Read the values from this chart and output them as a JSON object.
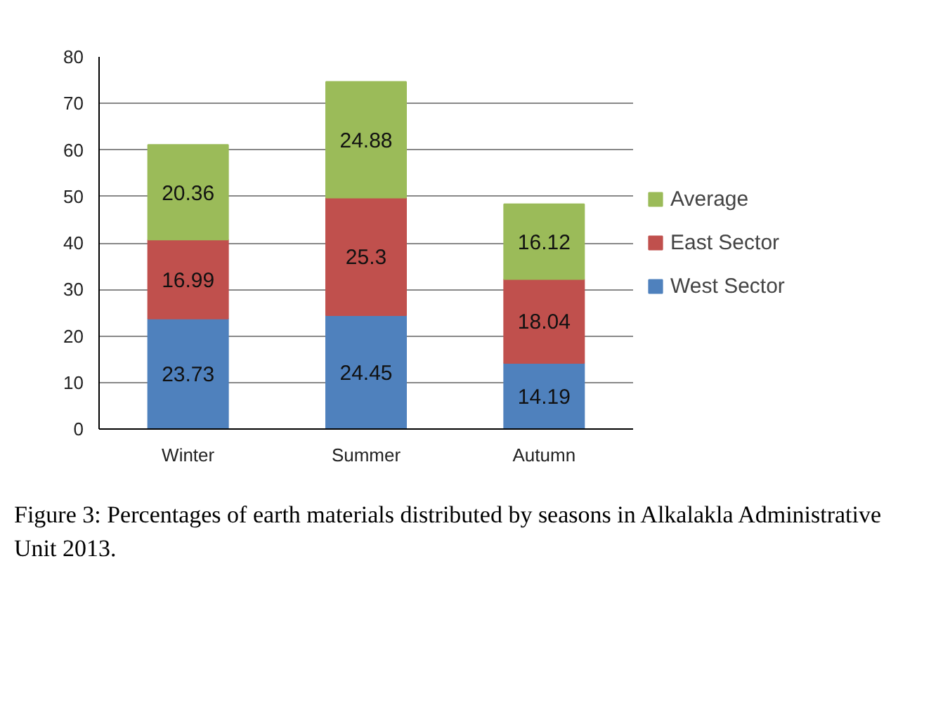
{
  "chart_data": {
    "type": "bar",
    "stacked": true,
    "categories": [
      "Winter",
      "Summer",
      "Autumn"
    ],
    "series": [
      {
        "name": "West Sector",
        "color": "#4f81bd",
        "values": [
          23.73,
          24.45,
          14.19
        ]
      },
      {
        "name": "East Sector",
        "color": "#c0504d",
        "values": [
          16.99,
          25.3,
          18.04
        ]
      },
      {
        "name": "Average",
        "color": "#9bbb59",
        "values": [
          20.36,
          24.88,
          16.12
        ]
      }
    ],
    "ylim": [
      0,
      80
    ],
    "yticks": [
      0,
      10,
      20,
      30,
      40,
      50,
      60,
      70,
      80
    ],
    "grid": "y",
    "legend": "right",
    "data_labels": true,
    "annotations": [
      "Figure 3: Percentages of earth materials distributed by seasons in Alkalakla Administrative Unit 2013."
    ]
  }
}
